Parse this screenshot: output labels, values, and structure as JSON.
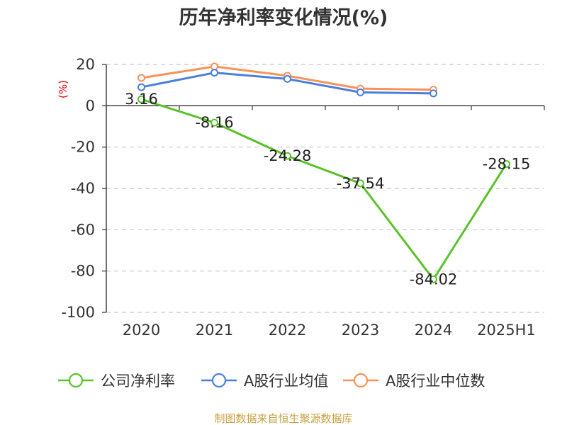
{
  "chart_data": {
    "type": "line",
    "title": "历年净利率变化情况(%)",
    "ylabel": "(%)",
    "categories": [
      "2020",
      "2021",
      "2022",
      "2023",
      "2024",
      "2025H1"
    ],
    "ylim": [
      -100,
      20
    ],
    "yticks": [
      20,
      0,
      -20,
      -40,
      -60,
      -80,
      -100
    ],
    "grid": true,
    "legend_position": "bottom",
    "series": [
      {
        "name": "公司净利率",
        "color": "#5ac229",
        "values": [
          3.16,
          -8.16,
          -24.28,
          -37.54,
          -84.02,
          -28.15
        ],
        "labels": [
          "3.16",
          "-8.16",
          "-24.28",
          "-37.54",
          "-84.02",
          "-28.15"
        ]
      },
      {
        "name": "A股行业均值",
        "color": "#4a7fdc",
        "values": [
          9.0,
          16.0,
          13.0,
          6.5,
          6.0,
          null
        ]
      },
      {
        "name": "A股行业中位数",
        "color": "#f7925a",
        "values": [
          13.5,
          19.0,
          14.5,
          8.3,
          7.8,
          null
        ]
      }
    ]
  },
  "source": "制图数据来自恒生聚源数据库"
}
